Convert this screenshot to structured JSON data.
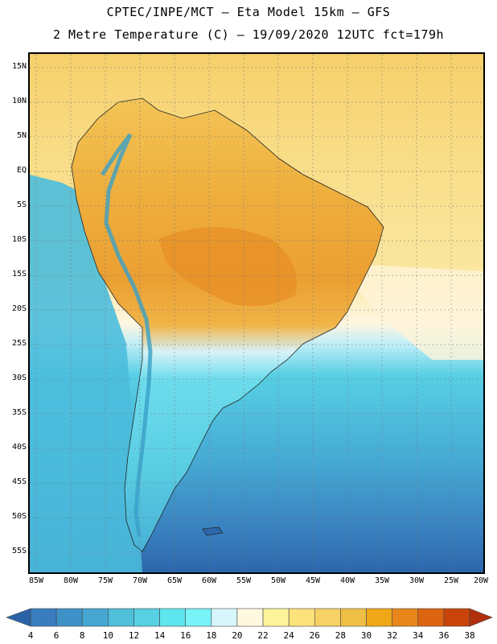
{
  "title_line1": "CPTEC/INPE/MCT –  Eta Model 15km – GFS",
  "title_line2": "2 Metre Temperature (C) – 19/09/2020 12UTC fct=179h",
  "lat_labels": [
    "15N",
    "10N",
    "5N",
    "EQ",
    "5S",
    "10S",
    "15S",
    "20S",
    "25S",
    "30S",
    "35S",
    "40S",
    "45S",
    "50S",
    "55S"
  ],
  "lon_labels": [
    "85W",
    "80W",
    "75W",
    "70W",
    "65W",
    "60W",
    "55W",
    "50W",
    "45W",
    "40W",
    "35W",
    "30W",
    "25W",
    "20W"
  ],
  "colorbar": {
    "labels": [
      "4",
      "6",
      "8",
      "10",
      "12",
      "14",
      "16",
      "18",
      "20",
      "22",
      "24",
      "26",
      "28",
      "30",
      "32",
      "34",
      "36",
      "38"
    ],
    "colors": [
      "#2a63a8",
      "#3a7dbf",
      "#3f92c8",
      "#46a7d2",
      "#4fbfda",
      "#56d0e2",
      "#5ee6ee",
      "#78f4f8",
      "#d6f6fb",
      "#fff8e1",
      "#fdf39a",
      "#fbe27a",
      "#f6d166",
      "#efbf45",
      "#f0a818",
      "#e8861c",
      "#dd6412",
      "#c9440a",
      "#b0300c"
    ]
  },
  "map": {
    "ocean_north": "#f7d36f",
    "ocean_tropic": "#fbe9a6",
    "ocean_cool": "#4ec0de",
    "ocean_cold": "#3b86c2",
    "land_hot": "#efa83a",
    "land_warm": "#f4c75c",
    "land_cool": "#6ed8ea",
    "andes": "#3aa0c8"
  }
}
